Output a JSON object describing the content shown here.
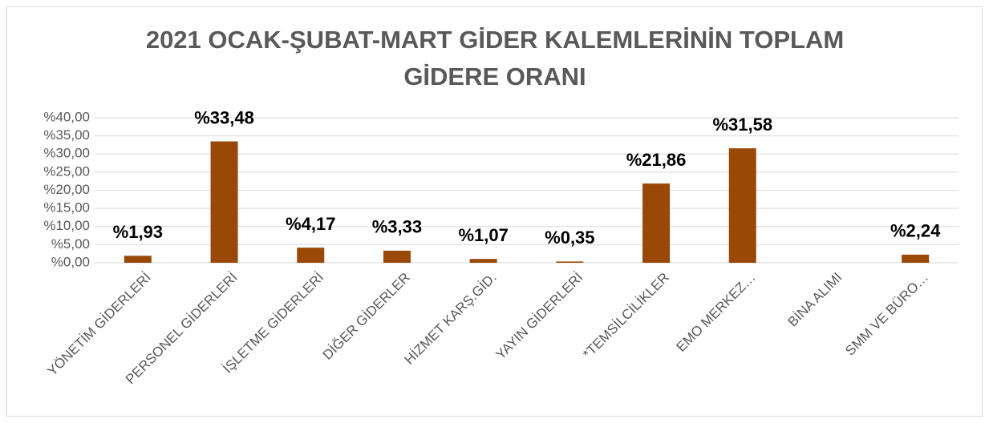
{
  "chart_data": {
    "type": "bar",
    "title": [
      "2021 OCAK-ŞUBAT-MART GİDER KALEMLERİNİN TOPLAM",
      "GİDERE ORANI"
    ],
    "categories": [
      "YÖNETİM GİDERLERİ",
      "PERSONEL GİDERLERİ",
      "İŞLETME GİDERLERİ",
      "DİĞER GİDERLER",
      "HİZMET KARŞ.GİD.",
      "YAYIN GİDERLERİ",
      "*TEMSİLCİLİKLER",
      "EMO MERKEZ…",
      "BİNA ALIMI",
      "SMM VE BÜRO…"
    ],
    "values": [
      1.93,
      33.48,
      4.17,
      3.33,
      1.07,
      0.35,
      21.86,
      31.58,
      null,
      2.24
    ],
    "value_labels": [
      "%1,93",
      "%33,48",
      "%4,17",
      "%3,33",
      "%1,07",
      "%0,35",
      "%21,86",
      "%31,58",
      null,
      "%2,24"
    ],
    "color": "#9a4806",
    "ylim": [
      0,
      40
    ],
    "yticks": [
      {
        "value": 0,
        "label": "%0,00"
      },
      {
        "value": 5,
        "label": "%5,00"
      },
      {
        "value": 10,
        "label": "%10,00"
      },
      {
        "value": 15,
        "label": "%15,00"
      },
      {
        "value": 20,
        "label": "%20,00"
      },
      {
        "value": 25,
        "label": "%25,00"
      },
      {
        "value": 30,
        "label": "%30,00"
      },
      {
        "value": 35,
        "label": "%35,00"
      },
      {
        "value": 40,
        "label": "%40,00"
      }
    ],
    "grid": true
  }
}
